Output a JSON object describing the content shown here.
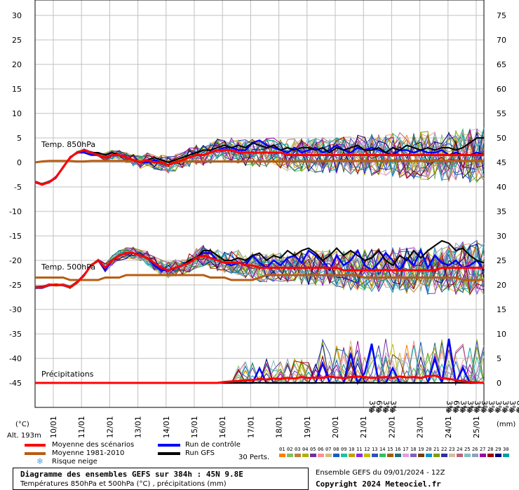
{
  "chart_data": {
    "type": "line",
    "left_axis": {
      "label": "(°C)",
      "ticks": [
        30,
        25,
        20,
        15,
        10,
        5,
        0,
        -5,
        -10,
        -15,
        -20,
        -25,
        -30,
        -35,
        -40,
        -45
      ],
      "range": [
        -45,
        30
      ]
    },
    "right_axis": {
      "label": "(mm)",
      "ticks": [
        75,
        70,
        65,
        60,
        55,
        50,
        45,
        40,
        35,
        30,
        25,
        20,
        15,
        10,
        5,
        0
      ],
      "range": [
        0,
        75
      ]
    },
    "x_labels": [
      "10/01",
      "11/01",
      "12/01",
      "13/01",
      "14/01",
      "15/01",
      "16/01",
      "17/01",
      "18/01",
      "19/01",
      "20/01",
      "21/01",
      "22/01",
      "23/01",
      "24/01",
      "25/01"
    ],
    "altitude": "Alt. 193m",
    "grid": true,
    "panels": [
      {
        "name": "Temp. 850hPa",
        "mean_scenarios": [
          -4,
          -4.5,
          -4,
          -3,
          -1,
          1,
          2,
          2.5,
          2,
          1.5,
          1,
          1.5,
          1.5,
          1,
          0.5,
          0,
          0.5,
          0,
          0,
          -0.5,
          0,
          0.5,
          1,
          1.5,
          1.5,
          2,
          2.5,
          2.5,
          2.5,
          2,
          2,
          2,
          2,
          2,
          2,
          2,
          1.5,
          1.5,
          1.5,
          1.5,
          1.5,
          1.5,
          1.5,
          1.5,
          1.5,
          1.5,
          1.5,
          1.5,
          1.5,
          1.5,
          1.5,
          1.5,
          1.5,
          1.5,
          1.5,
          1.5,
          1.5,
          1.5,
          1.5,
          1.5,
          1.5,
          1.5,
          1.5,
          1.5,
          1.5
        ],
        "normal_1981_2010": [
          0,
          0.2,
          0.3,
          0.3,
          0.3,
          0.3,
          0.2,
          0.2,
          0.3,
          0.3,
          0.3,
          0.3,
          0.3,
          0.3,
          0.3,
          0.3,
          0.3,
          0.3,
          0.2,
          0.2,
          0.2,
          0.2,
          0.2,
          0.2,
          0.2,
          0.2,
          0.2,
          0.2,
          0.2,
          0.2,
          0.2,
          0.2,
          0.2,
          0.2,
          0.2,
          0.2,
          0.2,
          0.2,
          0.2,
          0.2,
          0.2,
          0.3,
          0.3,
          0.3,
          0.3,
          0.3,
          0.3,
          0.3,
          0.3,
          0.3,
          0.3,
          0.3,
          0.3,
          0.3,
          0.3,
          0.3,
          0.3,
          0.3,
          0.3,
          0.3,
          0.3,
          0.3,
          0.3,
          0.3,
          0.3
        ],
        "control_run": [
          -4,
          -4.5,
          -4,
          -3,
          -1,
          1,
          2,
          2,
          1.5,
          1.5,
          1,
          1.5,
          1.5,
          1,
          0.5,
          0,
          0,
          0.5,
          0,
          -0.5,
          0,
          0.5,
          1,
          1.5,
          1.5,
          2,
          2.5,
          3,
          3,
          2.5,
          2.5,
          4,
          4.5,
          3.5,
          3,
          2.5,
          2,
          3,
          2,
          2.5,
          3,
          2,
          2.5,
          3.5,
          2.5,
          2,
          3,
          2.5,
          3,
          2.5,
          2,
          1.5,
          2.5,
          2.5,
          2,
          2.5,
          2,
          2,
          2.5,
          1.5,
          2,
          1.5,
          1.5,
          2,
          1.5
        ],
        "gfs_run": [
          -4,
          -4.5,
          -4,
          -3,
          -1,
          1,
          2,
          2.5,
          2,
          2,
          1.5,
          2,
          1.5,
          1,
          0.5,
          0,
          0.5,
          1,
          0.5,
          0,
          0.5,
          1,
          1.5,
          2,
          2.5,
          2.5,
          3,
          3.5,
          3,
          3.5,
          3,
          4,
          3.5,
          3,
          3.5,
          2.5,
          3,
          2.5,
          3,
          3,
          2.5,
          3,
          2,
          3,
          2.5,
          3,
          3.5,
          2.5,
          2.5,
          3,
          2,
          3,
          2.5,
          3.5,
          3,
          2.5,
          3,
          2.5,
          3,
          3,
          2.5,
          3,
          4,
          5,
          5
        ]
      },
      {
        "name": "Temp. 500hPa",
        "mean_scenarios": [
          -25.5,
          -25.5,
          -25,
          -25,
          -25,
          -25.5,
          -24.5,
          -23,
          -21,
          -20,
          -21.5,
          -20,
          -19,
          -18.5,
          -18.5,
          -19,
          -19.5,
          -20.5,
          -21.5,
          -22,
          -21.5,
          -21,
          -20.5,
          -19.5,
          -19,
          -19.5,
          -20,
          -20.5,
          -20.5,
          -20.5,
          -21,
          -21,
          -21.5,
          -21.5,
          -21.5,
          -21.5,
          -21.5,
          -21.5,
          -21.5,
          -21.5,
          -21.5,
          -21.5,
          -21.5,
          -21.5,
          -22,
          -22,
          -22,
          -22,
          -22,
          -22,
          -22,
          -22,
          -22,
          -22,
          -22,
          -22,
          -22,
          -22,
          -21.5,
          -21.5,
          -21.5,
          -21.5,
          -21.5,
          -21.5,
          -21.5
        ],
        "normal_1981_2010": [
          -23.5,
          -23.5,
          -23.5,
          -23.5,
          -23.5,
          -24,
          -24,
          -24,
          -24,
          -24,
          -23.5,
          -23.5,
          -23.5,
          -23,
          -23,
          -23,
          -23,
          -23,
          -23,
          -23,
          -23,
          -23,
          -23,
          -23,
          -23,
          -23.5,
          -23.5,
          -23.5,
          -24,
          -24,
          -24,
          -24,
          -23.5,
          -23,
          -23,
          -23,
          -23,
          -23,
          -23,
          -23,
          -23,
          -23,
          -23,
          -23,
          -23,
          -23,
          -23,
          -23.5,
          -23.5,
          -23.5,
          -23.5,
          -23.5,
          -23.5,
          -23.5,
          -23.5,
          -23.5,
          -23.5,
          -23.5,
          -23.5,
          -23.5,
          -23.5,
          -24,
          -24,
          -24,
          -24
        ],
        "control_run": [
          -25.5,
          -25.5,
          -25,
          -25,
          -25,
          -25.5,
          -24.5,
          -23,
          -21,
          -20,
          -22,
          -20,
          -19,
          -18.5,
          -18.5,
          -19,
          -19.5,
          -21,
          -22,
          -22,
          -21.5,
          -21,
          -20,
          -19.5,
          -18.5,
          -18.5,
          -20,
          -20.5,
          -21,
          -20.5,
          -21,
          -19,
          -20.5,
          -21.5,
          -20,
          -21,
          -19.5,
          -19,
          -20.5,
          -18,
          -19,
          -20,
          -22,
          -19,
          -21,
          -20,
          -18,
          -21,
          -22,
          -20.5,
          -18.5,
          -20,
          -22,
          -19.5,
          -21,
          -18,
          -21.5,
          -19,
          -20.5,
          -21,
          -20,
          -21.5,
          -21,
          -20,
          -22
        ],
        "gfs_run": [
          -25.5,
          -25.5,
          -25,
          -25,
          -25,
          -25.5,
          -24.5,
          -23,
          -21,
          -20,
          -21.5,
          -20,
          -19,
          -18.5,
          -18.5,
          -19,
          -19.5,
          -20.5,
          -21.5,
          -22,
          -21.5,
          -21,
          -20,
          -19.5,
          -18,
          -18,
          -19,
          -20,
          -20,
          -19.5,
          -20,
          -19,
          -18.5,
          -20,
          -19,
          -19.5,
          -18,
          -19,
          -18,
          -17.5,
          -18.5,
          -20,
          -19,
          -17.5,
          -19,
          -18,
          -19,
          -20,
          -19.5,
          -18,
          -20,
          -21,
          -19,
          -20,
          -18,
          -19.5,
          -18,
          -17,
          -16,
          -16.5,
          -18,
          -17.5,
          -19,
          -20,
          -20.5
        ]
      },
      {
        "name": "Précipitations",
        "mean_scenarios": [
          0,
          0,
          0,
          0,
          0,
          0,
          0,
          0,
          0,
          0,
          0,
          0,
          0,
          0,
          0,
          0,
          0,
          0,
          0,
          0,
          0,
          0,
          0,
          0,
          0,
          0,
          0,
          0.2,
          0.3,
          0.4,
          0.5,
          0.6,
          0.8,
          0.7,
          0.9,
          0.8,
          1,
          0.9,
          1.2,
          1,
          1.1,
          1,
          1.3,
          1.1,
          1,
          1.2,
          1.3,
          1.2,
          1,
          1.1,
          1.2,
          1,
          1.3,
          1.1,
          1.2,
          1,
          1.4,
          1.5,
          1,
          0.8,
          0.6,
          0.3,
          0.2,
          0.1,
          0
        ],
        "control_run": [
          0,
          0,
          0,
          0,
          0,
          0,
          0,
          0,
          0,
          0,
          0,
          0,
          0,
          0,
          0,
          0,
          0,
          0,
          0,
          0,
          0,
          0,
          0,
          0,
          0,
          0,
          0,
          0,
          0,
          0,
          0,
          0,
          3,
          0,
          0,
          0,
          0,
          0,
          0,
          0,
          0,
          4,
          0,
          0,
          0,
          6,
          0,
          2,
          8,
          0,
          0,
          3,
          0,
          0,
          0,
          0,
          0,
          5,
          0,
          9,
          0,
          3,
          0,
          0,
          0
        ],
        "gfs_run": [
          0,
          0,
          0,
          0,
          0,
          0,
          0,
          0,
          0,
          0,
          0,
          0,
          0,
          0,
          0,
          0,
          0,
          0,
          0,
          0,
          0,
          0,
          0,
          0,
          0,
          0,
          0,
          0,
          0,
          0,
          0,
          0,
          0,
          0,
          0,
          0,
          0,
          0,
          0,
          0,
          0,
          0,
          0,
          0,
          0,
          0,
          0,
          0,
          0,
          0,
          0,
          0,
          0,
          0,
          0,
          0,
          0,
          0,
          0,
          0,
          0,
          0,
          0,
          0,
          0
        ]
      }
    ],
    "snow_risk": {
      "labels": [
        "3%",
        "6%",
        "3%",
        "3%",
        "3%",
        "6%",
        "3%",
        "3%",
        "3%",
        "3%",
        "3%",
        "3%",
        "3%",
        "3%",
        "6%",
        "3%",
        "3%",
        "3%",
        "3%",
        "3%"
      ],
      "index": [
        48,
        49,
        50,
        51,
        59,
        60,
        61,
        62,
        63,
        64,
        65,
        66,
        67,
        68,
        69,
        70,
        76,
        77,
        78,
        83
      ]
    },
    "legend": {
      "mean": "Moyenne des scénarios",
      "control": "Run de contrôle",
      "normal": "Moyenne 1981-2010",
      "gfs": "Run GFS",
      "snow": "Risque neige",
      "perts_label": "30 Perts.",
      "pert_numbers": [
        "01",
        "02",
        "03",
        "04",
        "05",
        "06",
        "07",
        "08",
        "09",
        "10",
        "11",
        "12",
        "13",
        "14",
        "15",
        "16",
        "17",
        "18",
        "19",
        "20",
        "21",
        "22",
        "23",
        "24",
        "25",
        "26",
        "27",
        "28",
        "29",
        "30"
      ]
    },
    "colors": {
      "mean": "#ff0000",
      "normal": "#b85c12",
      "control": "#0000ff",
      "gfs": "#000000",
      "grid": "#c0c0c0",
      "snow": "#5aa7e8",
      "perts": [
        "#ff7f00",
        "#80c060",
        "#c08040",
        "#b0b000",
        "#7030a0",
        "#ff9090",
        "#d0c080",
        "#1060c0",
        "#20c0a0",
        "#c0a000",
        "#8a2be2",
        "#c0c000",
        "#3050c0",
        "#30c060",
        "#a06000",
        "#207070",
        "#e0a0e0",
        "#8060c0",
        "#704010",
        "#1090d0",
        "#80a000",
        "#3030a0",
        "#d0c0a0",
        "#c06080",
        "#80c0c0",
        "#90a0c0",
        "#a000a0",
        "#a00000",
        "#000080",
        "#00a0a0"
      ]
    },
    "title": "Diagramme des ensembles GEFS sur 384h : 45N 9.8E",
    "subtitle": "Températures 850hPa et 500hPa (°C) , précipitations (mm)",
    "run_info": "Ensemble GEFS du 09/01/2024 - 12Z",
    "copyright": "Copyright 2024 Meteociel.fr"
  }
}
